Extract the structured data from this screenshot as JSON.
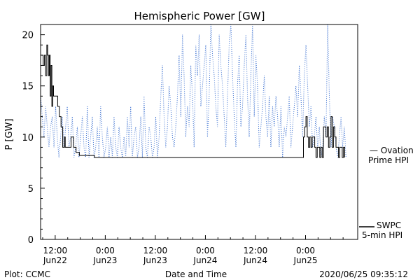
{
  "chart_data": {
    "type": "line",
    "title": "Hemispheric Power [GW]",
    "ylabel": "P [GW]",
    "xlabel": "Date and Time",
    "ylim": [
      0,
      21
    ],
    "yticks": [
      0,
      5,
      10,
      15,
      20
    ],
    "x_unit": "hours since 2020/06/22 00:00 UTC",
    "xlim": [
      8.5,
      84.5
    ],
    "xticks": [
      {
        "x": 12,
        "time": "12:00",
        "date": "Jun22"
      },
      {
        "x": 24,
        "time": "0:00",
        "date": "Jun23"
      },
      {
        "x": 36,
        "time": "12:00",
        "date": "Jun23"
      },
      {
        "x": 48,
        "time": "0:00",
        "date": "Jun24"
      },
      {
        "x": 60,
        "time": "12:00",
        "date": "Jun24"
      },
      {
        "x": 72,
        "time": "0:00",
        "date": "Jun25"
      }
    ],
    "series": [
      {
        "name": "Ovation Prime HPI",
        "legend_lines": [
          "— Ovation",
          "Prime HPI"
        ],
        "color": "#3a6fd0",
        "style": "dotted",
        "x": [
          8.5,
          8.9,
          9.3,
          9.7,
          10.1,
          10.5,
          10.9,
          11.3,
          11.7,
          12.1,
          12.5,
          12.9,
          13.3,
          13.7,
          14.1,
          14.5,
          14.9,
          15.3,
          15.7,
          16.1,
          16.5,
          16.9,
          17.3,
          17.7,
          18.1,
          18.5,
          18.9,
          19.3,
          19.7,
          20.1,
          20.5,
          20.9,
          21.3,
          21.7,
          22.1,
          22.5,
          22.9,
          23.3,
          23.7,
          24.1,
          24.5,
          24.9,
          25.3,
          25.7,
          26.1,
          26.5,
          26.9,
          27.3,
          27.7,
          28.1,
          28.5,
          28.9,
          29.3,
          29.7,
          30.1,
          30.5,
          30.9,
          31.3,
          31.7,
          32.1,
          32.5,
          32.9,
          33.3,
          33.7,
          34.1,
          34.5,
          34.9,
          35.3,
          35.7,
          36.1,
          36.5,
          36.9,
          37.3,
          37.7,
          38.1,
          38.5,
          38.9,
          39.3,
          39.7,
          40.1,
          40.5,
          40.9,
          41.3,
          41.7,
          42.1,
          42.5,
          42.9,
          43.3,
          43.7,
          44.1,
          44.5,
          44.9,
          45.3,
          45.7,
          46.1,
          46.5,
          46.9,
          47.3,
          47.7,
          48.1,
          48.5,
          48.9,
          49.3,
          49.7,
          50.1,
          50.5,
          50.9,
          51.3,
          51.7,
          52.1,
          52.5,
          52.9,
          53.3,
          53.7,
          54.1,
          54.5,
          54.9,
          55.3,
          55.7,
          56.1,
          56.5,
          56.9,
          57.3,
          57.7,
          58.1,
          58.5,
          58.9,
          59.3,
          59.7,
          60.1,
          60.5,
          60.9,
          61.3,
          61.7,
          62.1,
          62.5,
          62.9,
          63.3,
          63.7,
          64.1,
          64.5,
          64.9,
          65.3,
          65.7,
          66.1,
          66.5,
          66.9,
          67.3,
          67.7,
          68.1,
          68.5,
          68.9,
          69.3,
          69.7,
          70.1,
          70.5,
          70.9,
          71.3,
          71.7,
          72.1,
          72.5,
          72.9,
          73.3,
          73.7,
          74.1,
          74.5,
          74.9,
          75.3,
          75.7,
          76.1,
          76.5,
          76.9,
          77.3,
          77.7,
          78.1,
          78.5,
          78.9,
          79.3,
          79.7,
          80.1,
          80.5,
          80.9,
          81.3,
          81.7
        ],
        "y": [
          14,
          12,
          10,
          13,
          11,
          9,
          11,
          12,
          9,
          13,
          10,
          8,
          10,
          12,
          9,
          11,
          13,
          9,
          10,
          12,
          8,
          9,
          11,
          8,
          10,
          12,
          9,
          8,
          13,
          8,
          10,
          12,
          8,
          9,
          11,
          8,
          13,
          10,
          8,
          9,
          11,
          8,
          10,
          8,
          12,
          9,
          8,
          11,
          9,
          8,
          10,
          8,
          12,
          9,
          13,
          8,
          10,
          11,
          8,
          9,
          12,
          8,
          14,
          9,
          8,
          11,
          10,
          8,
          9,
          12,
          8,
          10,
          14,
          17,
          12,
          9,
          11,
          15,
          13,
          10,
          9,
          11,
          14,
          18,
          12,
          20,
          16,
          10,
          13,
          11,
          17,
          14,
          9,
          19,
          16,
          20,
          13,
          15,
          17,
          19,
          10,
          14,
          21,
          18,
          16,
          13,
          11,
          20,
          17,
          15,
          12,
          9,
          14,
          19,
          21,
          16,
          12,
          9,
          15,
          18,
          11,
          13,
          17,
          20,
          14,
          10,
          16,
          21,
          12,
          18,
          15,
          9,
          11,
          13,
          16,
          12,
          10,
          14,
          9,
          13,
          11,
          14,
          12,
          9,
          13,
          8,
          11,
          10,
          12,
          14,
          9,
          11,
          13,
          15,
          12,
          17,
          14,
          10,
          16,
          19,
          15,
          11,
          13,
          9,
          10,
          12,
          9,
          11,
          8,
          9,
          12,
          10,
          21,
          14,
          9,
          12,
          11,
          9,
          8,
          10,
          12,
          9,
          11,
          8
        ],
        "values_estimated": true
      },
      {
        "name": "SWPC 5-min HPI",
        "legend_lines": [
          "SWPC",
          "5-min HPI"
        ],
        "color": "#000000",
        "style": "solid",
        "x": [
          8.5,
          8.8,
          9.1,
          9.4,
          9.7,
          10.0,
          10.2,
          10.4,
          10.6,
          10.8,
          11.0,
          11.2,
          11.4,
          11.6,
          11.8,
          12.0,
          12.2,
          12.4,
          12.6,
          12.8,
          13.0,
          13.2,
          13.4,
          13.6,
          13.8,
          14.0,
          14.2,
          14.4,
          14.6,
          14.8,
          15.0,
          15.2,
          15.4,
          15.6,
          15.8,
          16.0,
          16.2,
          16.4,
          16.6,
          16.8,
          17.0,
          17.2,
          17.4,
          17.6,
          17.8,
          18.0,
          18.2,
          18.4,
          18.6,
          18.8,
          19.0,
          19.2,
          19.4,
          19.6,
          19.8,
          20.0,
          20.2,
          20.4,
          20.6,
          20.8,
          21.0,
          21.2,
          21.4,
          21.6,
          21.8,
          22.0,
          22.2,
          22.5,
          22.8,
          23.1,
          23.4,
          23.7,
          24.0,
          24.3,
          71.5,
          71.8,
          72.1,
          72.4,
          72.7,
          73.0,
          73.3,
          73.6,
          73.9,
          74.2,
          74.5,
          74.8,
          75.1,
          75.4,
          75.7,
          76.0,
          76.3,
          76.6,
          76.9,
          77.2,
          77.5,
          77.8,
          78.1,
          78.4,
          78.7,
          79.0,
          79.3,
          79.6,
          79.9,
          80.2,
          80.5,
          80.8,
          81.1,
          81.4
        ],
        "y": [
          18,
          18,
          17,
          18,
          16,
          19,
          18,
          16,
          18,
          14,
          17,
          13,
          15,
          14,
          14,
          14,
          14,
          14,
          13,
          13,
          12,
          12,
          11,
          11,
          9,
          9,
          10,
          9,
          9,
          9,
          9,
          9,
          9,
          9,
          10,
          10,
          10,
          9,
          9,
          9,
          8.5,
          8.5,
          8.5,
          8.5,
          8.2,
          8.2,
          8.2,
          8.2,
          8.2,
          8.2,
          8.2,
          8.2,
          8.2,
          8.2,
          8.2,
          8.2,
          8.2,
          8.2,
          8.2,
          8.2,
          8.2,
          8.2,
          8.0,
          8.0,
          8.0,
          8.0,
          8.0,
          8.0,
          8.0,
          8.0,
          8.0,
          8.0,
          8.0,
          8.0,
          10,
          11,
          12,
          10,
          9,
          10,
          9,
          10,
          10,
          9,
          8,
          9,
          9,
          8,
          9,
          8,
          11,
          11,
          10,
          11,
          9,
          10,
          12,
          9,
          11,
          10,
          9,
          9,
          8,
          9,
          9,
          8,
          9,
          8
        ],
        "values_estimated": true
      }
    ],
    "footer": {
      "left": "Plot: CCMC",
      "center": "Date and Time",
      "right": "2020/06/25 09:35:12"
    },
    "grid": false,
    "legend_placement": "right-outside"
  }
}
